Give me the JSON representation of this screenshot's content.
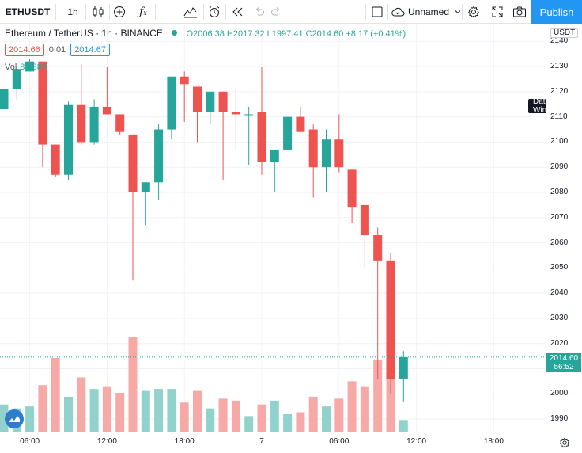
{
  "toolbar": {
    "symbol": "ETHUSDT",
    "interval": "1h",
    "layout_name": "Unnamed",
    "publish_label": "Publish"
  },
  "legend": {
    "title": "Ethereum / TetherUS · 1h · BINANCE",
    "ohlc": "O2006.38 H2017.32 L1997.41 C2014.60 +8.17 (+0.41%)",
    "bid": "2014.66",
    "spread": "0.01",
    "ask": "2014.67",
    "volume_label": "Vol",
    "volume_value": "8.038K"
  },
  "price_axis": {
    "currency": "USDT",
    "current_price": "2014.60",
    "countdown": "56:52"
  },
  "tooltip": {
    "data_window": "Data Window"
  },
  "colors": {
    "up": "#26a69a",
    "down": "#ef5350",
    "up_volume": "#92d2cc",
    "down_volume": "#f7a9a7",
    "accent": "#2196f3"
  },
  "chart_data": {
    "type": "candlestick",
    "title": "Ethereum / TetherUS · 1h · BINANCE",
    "ylim": [
      1985,
      2147
    ],
    "yticks": [
      1990,
      2000,
      2010,
      2020,
      2030,
      2040,
      2050,
      2060,
      2070,
      2080,
      2090,
      2100,
      2110,
      2120,
      2130,
      2140
    ],
    "xticks": [
      {
        "index": 2,
        "label": "06:00"
      },
      {
        "index": 8,
        "label": "12:00"
      },
      {
        "index": 14,
        "label": "18:00"
      },
      {
        "index": 20,
        "label": "7"
      },
      {
        "index": 26,
        "label": "06:00"
      },
      {
        "index": 32,
        "label": "12:00"
      },
      {
        "index": 38,
        "label": "18:00"
      }
    ],
    "candles": [
      {
        "o": 2113,
        "h": 2121,
        "l": 2113,
        "c": 2121,
        "v": 1.4
      },
      {
        "o": 2121,
        "h": 2130,
        "l": 2117,
        "c": 2129,
        "v": 1.2
      },
      {
        "o": 2128,
        "h": 2133,
        "l": 2128,
        "c": 2132,
        "v": 1.3
      },
      {
        "o": 2132,
        "h": 2132,
        "l": 2090,
        "c": 2099,
        "v": 2.4
      },
      {
        "o": 2099,
        "h": 2099,
        "l": 2086,
        "c": 2087,
        "v": 3.8
      },
      {
        "o": 2087,
        "h": 2116,
        "l": 2085,
        "c": 2115,
        "v": 1.8
      },
      {
        "o": 2115,
        "h": 2131,
        "l": 2099,
        "c": 2100,
        "v": 2.8
      },
      {
        "o": 2100,
        "h": 2117,
        "l": 2099,
        "c": 2114,
        "v": 2.2
      },
      {
        "o": 2114,
        "h": 2130,
        "l": 2111,
        "c": 2111,
        "v": 2.3
      },
      {
        "o": 2111,
        "h": 2111,
        "l": 2103,
        "c": 2104,
        "v": 2.0
      },
      {
        "o": 2103,
        "h": 2103,
        "l": 2045,
        "c": 2080,
        "v": 4.9
      },
      {
        "o": 2080,
        "h": 2084,
        "l": 2067,
        "c": 2084,
        "v": 2.1
      },
      {
        "o": 2084,
        "h": 2107,
        "l": 2077,
        "c": 2105,
        "v": 2.2
      },
      {
        "o": 2105,
        "h": 2126,
        "l": 2101,
        "c": 2126,
        "v": 2.2
      },
      {
        "o": 2126,
        "h": 2128,
        "l": 2108,
        "c": 2123,
        "v": 1.5
      },
      {
        "o": 2122,
        "h": 2122,
        "l": 2100,
        "c": 2112,
        "v": 2.1
      },
      {
        "o": 2112,
        "h": 2120,
        "l": 2107,
        "c": 2120,
        "v": 1.2
      },
      {
        "o": 2120,
        "h": 2120,
        "l": 2085,
        "c": 2112,
        "v": 1.7
      },
      {
        "o": 2112,
        "h": 2121,
        "l": 2097,
        "c": 2111,
        "v": 1.6
      },
      {
        "o": 2111,
        "h": 2114,
        "l": 2091,
        "c": 2111,
        "v": 0.8
      },
      {
        "o": 2112,
        "h": 2130,
        "l": 2087,
        "c": 2092,
        "v": 1.4
      },
      {
        "o": 2092,
        "h": 2097,
        "l": 2080,
        "c": 2097,
        "v": 1.6
      },
      {
        "o": 2097,
        "h": 2110,
        "l": 2097,
        "c": 2110,
        "v": 0.9
      },
      {
        "o": 2110,
        "h": 2114,
        "l": 2104,
        "c": 2104,
        "v": 1.0
      },
      {
        "o": 2105,
        "h": 2107,
        "l": 2078,
        "c": 2090,
        "v": 1.8
      },
      {
        "o": 2090,
        "h": 2105,
        "l": 2080,
        "c": 2101,
        "v": 1.3
      },
      {
        "o": 2101,
        "h": 2111,
        "l": 2088,
        "c": 2090,
        "v": 1.7
      },
      {
        "o": 2089,
        "h": 2089,
        "l": 2068,
        "c": 2074,
        "v": 2.6
      },
      {
        "o": 2075,
        "h": 2075,
        "l": 2050,
        "c": 2063,
        "v": 2.3
      },
      {
        "o": 2063,
        "h": 2066,
        "l": 2006,
        "c": 2053,
        "v": 3.7
      },
      {
        "o": 2053,
        "h": 2056,
        "l": 2000,
        "c": 2006,
        "v": 3.6
      },
      {
        "o": 2006,
        "h": 2017,
        "l": 1997,
        "c": 2014.6,
        "v": 0.6
      }
    ]
  }
}
